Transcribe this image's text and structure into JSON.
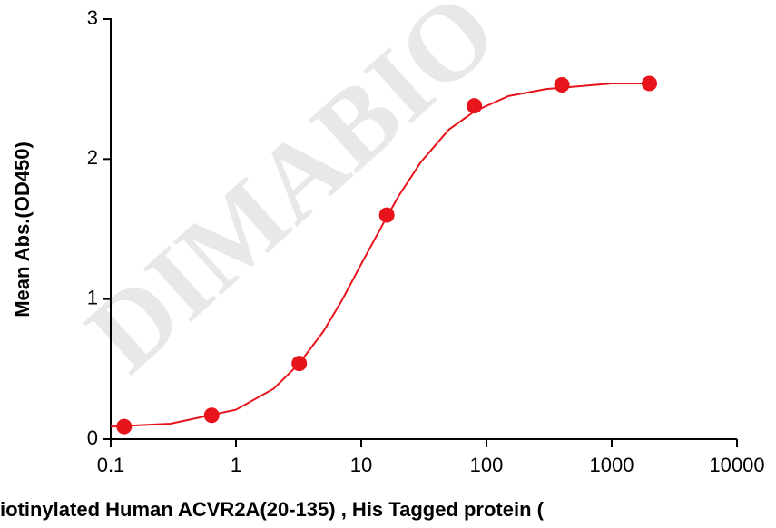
{
  "chart_data": {
    "type": "scatter",
    "watermark": "DIMABIO",
    "x_label": "iotinylated Human ACVR2A(20-135) , His Tagged protein (",
    "y_label": "Mean Abs.(OD450)",
    "x": [
      0.128,
      0.64,
      3.2,
      16,
      80,
      400,
      2000
    ],
    "values": [
      0.09,
      0.17,
      0.54,
      1.6,
      2.38,
      2.53,
      2.54
    ],
    "color": "#e8141b",
    "curve": {
      "x": [
        0.1,
        0.3,
        1,
        2,
        3.2,
        5,
        7,
        10,
        15,
        20,
        30,
        50,
        80,
        150,
        300,
        1000,
        2000
      ],
      "values": [
        0.089,
        0.11,
        0.21,
        0.36,
        0.54,
        0.77,
        0.99,
        1.25,
        1.54,
        1.74,
        1.98,
        2.21,
        2.34,
        2.45,
        2.5,
        2.54,
        2.54
      ]
    },
    "xscale": "log",
    "xlim": [
      0.1,
      10000
    ],
    "xticks": [
      0.1,
      1,
      10,
      100,
      1000,
      10000
    ],
    "ylim": [
      0,
      3
    ],
    "yticks": [
      0,
      1,
      2,
      3
    ]
  }
}
